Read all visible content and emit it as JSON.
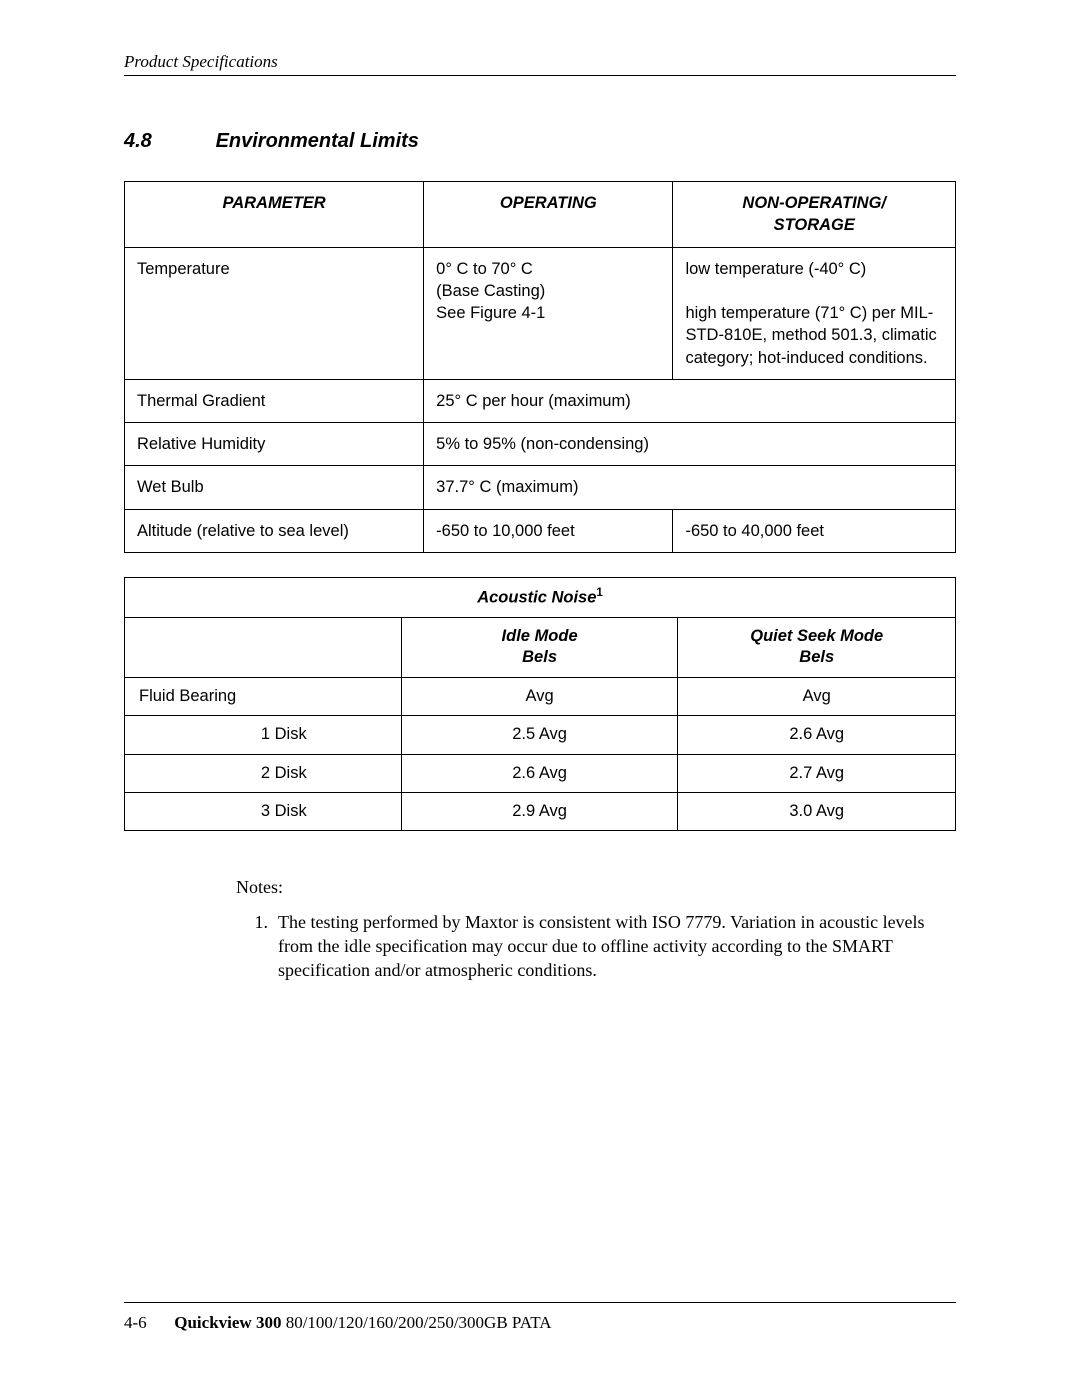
{
  "header": {
    "running": "Product Specifications"
  },
  "section": {
    "number": "4.8",
    "title": "Environmental Limits"
  },
  "env_table": {
    "headers": {
      "param": "PARAMETER",
      "op": "OPERATING",
      "nonop": "NON-OPERATING/ STORAGE"
    },
    "rows": {
      "temp": {
        "param": "Temperature",
        "op_l1": "0° C to 70° C",
        "op_l2": "(Base Casting)",
        "op_l3": "See Figure 4-1",
        "nonop_l1": "low temperature (-40°  C)",
        "nonop_l2": "high temperature (71°  C) per MIL-STD-810E, method 501.3, climatic category; hot-induced conditions."
      },
      "grad": {
        "param": "Thermal Gradient",
        "val": "25° C per hour (maximum)"
      },
      "rh": {
        "param": "Relative Humidity",
        "val": "5% to 95% (non-condensing)"
      },
      "wet": {
        "param": "Wet Bulb",
        "val": "37.7° C (maximum)"
      },
      "alt": {
        "param": "Altitude (relative to sea level)",
        "op": "-650 to 10,000 feet",
        "nonop": "-650 to 40,000 feet"
      }
    }
  },
  "noise_table": {
    "title_pre": "Acoustic Noise",
    "title_sup": "1",
    "headers": {
      "idle_l1": "Idle Mode",
      "idle_l2": "Bels",
      "seek_l1": "Quiet Seek Mode",
      "seek_l2": "Bels"
    },
    "rows": [
      {
        "label": "Fluid Bearing",
        "idle": "Avg",
        "seek": "Avg",
        "indent": false
      },
      {
        "label": "1 Disk",
        "idle": "2.5 Avg",
        "seek": "2.6 Avg",
        "indent": true
      },
      {
        "label": "2 Disk",
        "idle": "2.6 Avg",
        "seek": "2.7 Avg",
        "indent": true
      },
      {
        "label": "3 Disk",
        "idle": "2.9 Avg",
        "seek": "3.0 Avg",
        "indent": true
      }
    ]
  },
  "notes": {
    "label": "Notes:",
    "items": [
      {
        "num": "1.",
        "text": "The testing performed by Maxtor is consistent with ISO 7779. Variation in acoustic levels from the idle specification may occur due to offline activity according to the SMART specification and/or atmospheric conditions."
      }
    ]
  },
  "footer": {
    "page": "4-6",
    "title": "Quickview 300 ",
    "rest": "80/100/120/160/200/250/300GB PATA"
  }
}
